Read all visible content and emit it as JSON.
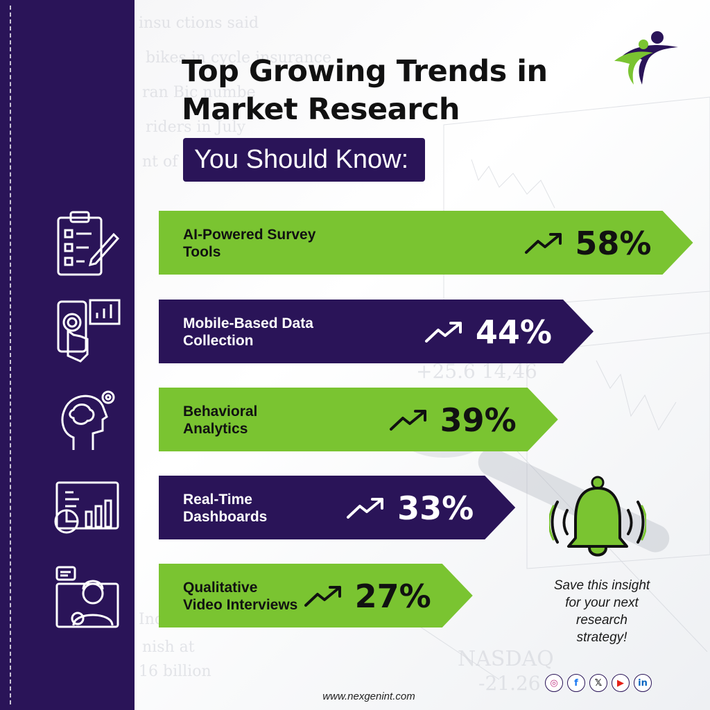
{
  "title_line1": "Top Growing Trends in",
  "title_line2": "Market Research",
  "subtitle": "You Should Know:",
  "chart_data": {
    "type": "bar",
    "orientation": "horizontal",
    "categories": [
      "AI-Powered Survey Tools",
      "Mobile-Based Data Collection",
      "Behavioral Analytics",
      "Real-Time Dashboards",
      "Qualitative Video Interviews"
    ],
    "label_lines": [
      [
        "AI-Powered Survey",
        "Tools"
      ],
      [
        "Mobile-Based Data",
        "Collection"
      ],
      [
        "Behavioral",
        "Analytics"
      ],
      [
        "Real-Time",
        "Dashboards"
      ],
      [
        "Qualitative",
        "Video Interviews"
      ]
    ],
    "values": [
      58,
      44,
      39,
      33,
      27
    ],
    "value_labels": [
      "58%",
      "44%",
      "39%",
      "33%",
      "27%"
    ],
    "unit": "%",
    "colors": [
      "#7ac431",
      "#2a1458",
      "#7ac431",
      "#2a1458",
      "#7ac431"
    ],
    "label_colors": [
      "#111111",
      "#ffffff",
      "#111111",
      "#ffffff",
      "#111111"
    ]
  },
  "sidebar_icons": [
    "clipboard-checklist-icon",
    "mobile-touch-chart-icon",
    "head-brain-gear-icon",
    "dashboard-charts-icon",
    "video-interview-person-icon"
  ],
  "callout": {
    "icon": "bell-icon",
    "lines": [
      "Save this insight",
      "for your next",
      "research",
      "strategy!"
    ]
  },
  "website": "www.nexgenint.com",
  "social_icons": [
    "instagram-icon",
    "facebook-icon",
    "x-icon",
    "youtube-icon",
    "linkedin-icon"
  ],
  "social_glyphs": [
    "◎",
    "f",
    "𝕏",
    "▶",
    "in"
  ],
  "colors": {
    "purple": "#2a1458",
    "green": "#7ac431"
  }
}
